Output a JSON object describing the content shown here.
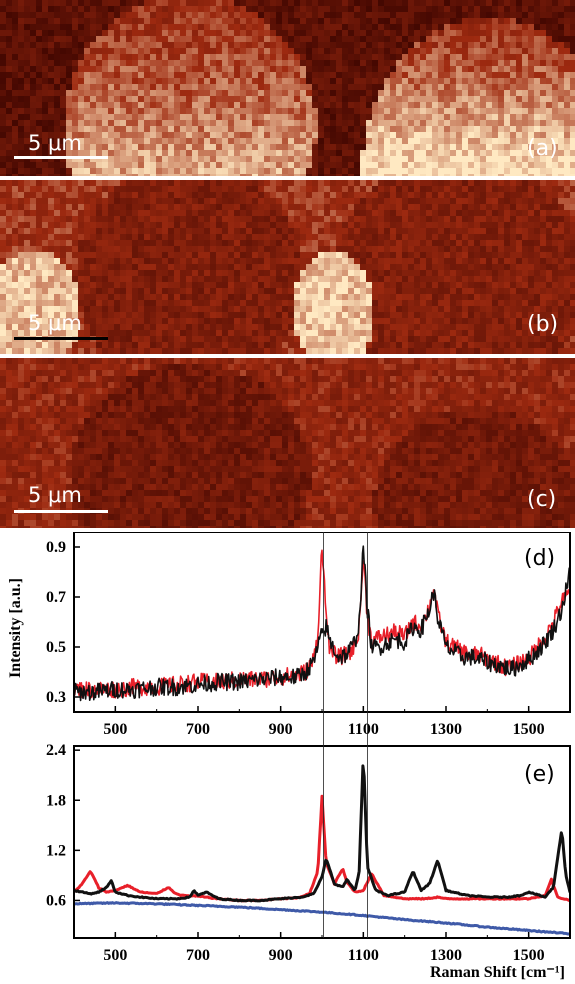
{
  "maps": [
    {
      "label": "(a)",
      "scale_bar": "5 μm"
    },
    {
      "label": "(b)",
      "scale_bar": "5 μm"
    },
    {
      "label": "(c)",
      "scale_bar": "5 μm"
    }
  ],
  "colors": {
    "map_dark": "#3d0500",
    "map_mid": "#9e2a10",
    "map_bright": "#ffe9c2",
    "red_spectrum": "#e8202a",
    "black_spectrum": "#111111",
    "blue_spectrum": "#3f5aa8"
  },
  "chart_data": [
    {
      "type": "line",
      "panel": "(d)",
      "ylabel": "Intensity [a.u.]",
      "xlim": [
        400,
        1600
      ],
      "ylim": [
        0.24,
        0.96
      ],
      "x_ticks": [
        "500",
        "700",
        "900",
        "1100",
        "1300",
        "1500"
      ],
      "y_ticks": [
        "0.9",
        "0.7",
        "0.5",
        "0.3"
      ],
      "x_tick_values": [
        500,
        700,
        900,
        1100,
        1300,
        1500
      ],
      "y_tick_values": [
        0.9,
        0.7,
        0.5,
        0.3
      ],
      "series": [
        {
          "color": "#e8202a",
          "noisy": true,
          "x": [
            400,
            450,
            500,
            550,
            600,
            650,
            700,
            750,
            800,
            850,
            900,
            940,
            960,
            980,
            990,
            1000,
            1010,
            1020,
            1040,
            1060,
            1080,
            1090,
            1100,
            1110,
            1120,
            1140,
            1160,
            1180,
            1200,
            1220,
            1240,
            1260,
            1270,
            1280,
            1300,
            1320,
            1340,
            1360,
            1380,
            1400,
            1420,
            1440,
            1460,
            1480,
            1500,
            1520,
            1540,
            1560,
            1580,
            1600
          ],
          "y": [
            0.33,
            0.33,
            0.33,
            0.34,
            0.34,
            0.35,
            0.36,
            0.36,
            0.37,
            0.37,
            0.38,
            0.39,
            0.4,
            0.45,
            0.55,
            0.92,
            0.62,
            0.48,
            0.46,
            0.47,
            0.5,
            0.58,
            0.86,
            0.62,
            0.52,
            0.54,
            0.55,
            0.56,
            0.54,
            0.6,
            0.58,
            0.66,
            0.74,
            0.63,
            0.52,
            0.5,
            0.48,
            0.47,
            0.47,
            0.45,
            0.44,
            0.42,
            0.42,
            0.44,
            0.45,
            0.5,
            0.54,
            0.6,
            0.68,
            0.72
          ]
        },
        {
          "color": "#111111",
          "noisy": true,
          "x": [
            400,
            450,
            500,
            550,
            600,
            650,
            700,
            750,
            800,
            850,
            900,
            940,
            960,
            980,
            990,
            1000,
            1010,
            1020,
            1040,
            1060,
            1080,
            1090,
            1100,
            1110,
            1120,
            1140,
            1160,
            1180,
            1200,
            1220,
            1240,
            1260,
            1270,
            1280,
            1300,
            1320,
            1340,
            1360,
            1380,
            1400,
            1420,
            1440,
            1460,
            1480,
            1500,
            1520,
            1540,
            1560,
            1580,
            1600
          ],
          "y": [
            0.32,
            0.32,
            0.33,
            0.33,
            0.34,
            0.34,
            0.35,
            0.36,
            0.36,
            0.37,
            0.38,
            0.38,
            0.4,
            0.44,
            0.5,
            0.55,
            0.58,
            0.52,
            0.46,
            0.47,
            0.52,
            0.6,
            0.9,
            0.65,
            0.5,
            0.5,
            0.52,
            0.53,
            0.52,
            0.58,
            0.57,
            0.65,
            0.72,
            0.62,
            0.5,
            0.48,
            0.46,
            0.46,
            0.45,
            0.44,
            0.43,
            0.42,
            0.41,
            0.43,
            0.45,
            0.48,
            0.52,
            0.57,
            0.65,
            0.8
          ]
        }
      ]
    },
    {
      "type": "line",
      "panel": "(e)",
      "xlabel": "Raman Shift [cm⁻¹]",
      "xlim": [
        400,
        1600
      ],
      "ylim": [
        0.15,
        2.45
      ],
      "x_ticks": [
        "500",
        "700",
        "900",
        "1100",
        "1300",
        "1500"
      ],
      "y_ticks": [
        "2.4",
        "1.8",
        "1.2",
        "0.6"
      ],
      "x_tick_values": [
        500,
        700,
        900,
        1100,
        1300,
        1500
      ],
      "y_tick_values": [
        2.4,
        1.8,
        1.2,
        0.6
      ],
      "series": [
        {
          "color": "#e8202a",
          "noisy": false,
          "x": [
            400,
            420,
            440,
            460,
            480,
            500,
            530,
            560,
            600,
            630,
            640,
            660,
            700,
            750,
            800,
            850,
            900,
            940,
            970,
            990,
            1000,
            1010,
            1030,
            1050,
            1060,
            1080,
            1100,
            1120,
            1150,
            1200,
            1250,
            1280,
            1300,
            1350,
            1400,
            1450,
            1500,
            1540,
            1555,
            1570,
            1600
          ],
          "y": [
            0.7,
            0.8,
            0.95,
            0.75,
            0.7,
            0.72,
            0.78,
            0.7,
            0.68,
            0.76,
            0.7,
            0.66,
            0.65,
            0.62,
            0.6,
            0.6,
            0.62,
            0.63,
            0.68,
            0.95,
            1.85,
            1.05,
            0.8,
            0.98,
            0.82,
            0.7,
            0.72,
            0.92,
            0.66,
            0.62,
            0.62,
            0.64,
            0.62,
            0.62,
            0.62,
            0.62,
            0.62,
            0.66,
            0.85,
            0.64,
            0.6
          ]
        },
        {
          "color": "#111111",
          "noisy": false,
          "x": [
            400,
            420,
            440,
            460,
            480,
            490,
            500,
            530,
            560,
            600,
            650,
            680,
            690,
            700,
            720,
            750,
            800,
            850,
            900,
            950,
            980,
            1000,
            1010,
            1030,
            1050,
            1060,
            1080,
            1090,
            1100,
            1110,
            1130,
            1160,
            1200,
            1220,
            1240,
            1260,
            1280,
            1300,
            1350,
            1400,
            1450,
            1480,
            1500,
            1540,
            1560,
            1580,
            1590,
            1600
          ],
          "y": [
            0.72,
            0.7,
            0.68,
            0.7,
            0.76,
            0.84,
            0.7,
            0.66,
            0.64,
            0.62,
            0.62,
            0.64,
            0.72,
            0.66,
            0.7,
            0.62,
            0.6,
            0.6,
            0.62,
            0.64,
            0.68,
            0.88,
            1.1,
            0.8,
            0.76,
            0.85,
            0.72,
            0.95,
            2.35,
            1.0,
            0.72,
            0.66,
            0.7,
            0.95,
            0.72,
            0.8,
            1.08,
            0.72,
            0.66,
            0.64,
            0.64,
            0.66,
            0.7,
            0.64,
            0.76,
            1.45,
            0.9,
            0.7
          ]
        },
        {
          "color": "#3f5aa8",
          "noisy": false,
          "x": [
            400,
            500,
            600,
            700,
            800,
            900,
            1000,
            1100,
            1200,
            1300,
            1400,
            1500,
            1600
          ],
          "y": [
            0.56,
            0.57,
            0.56,
            0.54,
            0.52,
            0.49,
            0.46,
            0.42,
            0.37,
            0.33,
            0.28,
            0.24,
            0.2
          ]
        }
      ]
    }
  ]
}
